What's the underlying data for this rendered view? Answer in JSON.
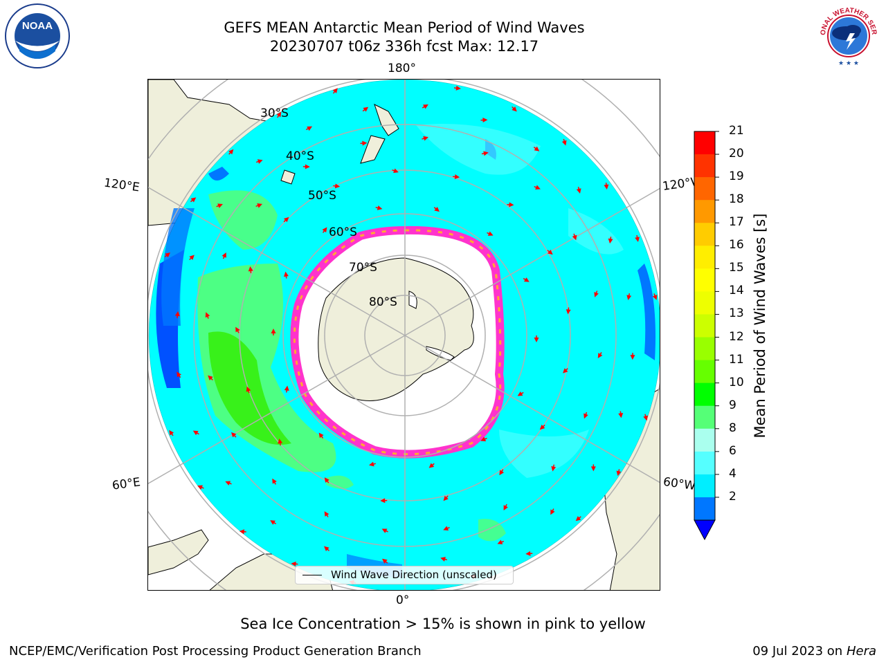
{
  "header": {
    "title_line1": "GEFS MEAN Antarctic Mean Period of Wind Waves",
    "title_line2": "20230707 t06z 336h fcst   Max: 12.17"
  },
  "logos": {
    "noaa_text": "NOAA",
    "nws_text": "NATIONAL WEATHER SERVICE"
  },
  "map": {
    "projection": "south polar stereographic",
    "lon_labels": {
      "top": "180°",
      "bottom": "0°",
      "upper_left": "120°E",
      "lower_left": "60°E",
      "upper_right": "120°W",
      "lower_right": "60°W"
    },
    "lat_labels": [
      "30°S",
      "40°S",
      "50°S",
      "60°S",
      "70°S",
      "80°S"
    ],
    "colors": {
      "land": "#efefdb",
      "ocean_base": "#00ffff",
      "sea_ice_edge": "#ff33cc",
      "no_data": "#ffffff",
      "arrow": "#ff0000",
      "grid": "#b0b0b0"
    }
  },
  "colorbar": {
    "label": "Mean Period of Wind Waves [s]",
    "ticks": [
      "21",
      "20",
      "19",
      "18",
      "17",
      "16",
      "15",
      "14",
      "13",
      "12",
      "11",
      "10",
      "9",
      "8",
      "6",
      "4",
      "2"
    ],
    "bands_top_to_bottom": [
      "#ff0000",
      "#ff3300",
      "#ff6600",
      "#ff9900",
      "#ffcc00",
      "#ffee00",
      "#ffff00",
      "#eeff00",
      "#ccff00",
      "#99ff00",
      "#66ff00",
      "#00ff00",
      "#55ff77",
      "#aaffee",
      "#55ffff",
      "#00eeff",
      "#0077ff"
    ],
    "under_color": "#0000ff"
  },
  "legend": {
    "label": "Wind Wave Direction (unscaled)"
  },
  "notes": {
    "sea_ice": "Sea Ice Concentration > 15% is shown in pink to yellow"
  },
  "footer": {
    "left": "NCEP/EMC/Verification Post Processing Product Generation Branch",
    "right_date": "09 Jul 2023 on",
    "right_machine": "Hera"
  }
}
